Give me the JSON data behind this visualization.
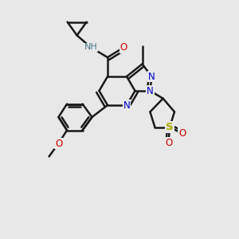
{
  "background_color": "#e8e8e8",
  "bond_color": "#1a1a1a",
  "bond_width": 1.8,
  "atom_colors": {
    "N": "#0000cc",
    "O": "#cc0000",
    "S": "#aaaa00",
    "NH": "#4d7a8a",
    "C": "#1a1a1a"
  }
}
